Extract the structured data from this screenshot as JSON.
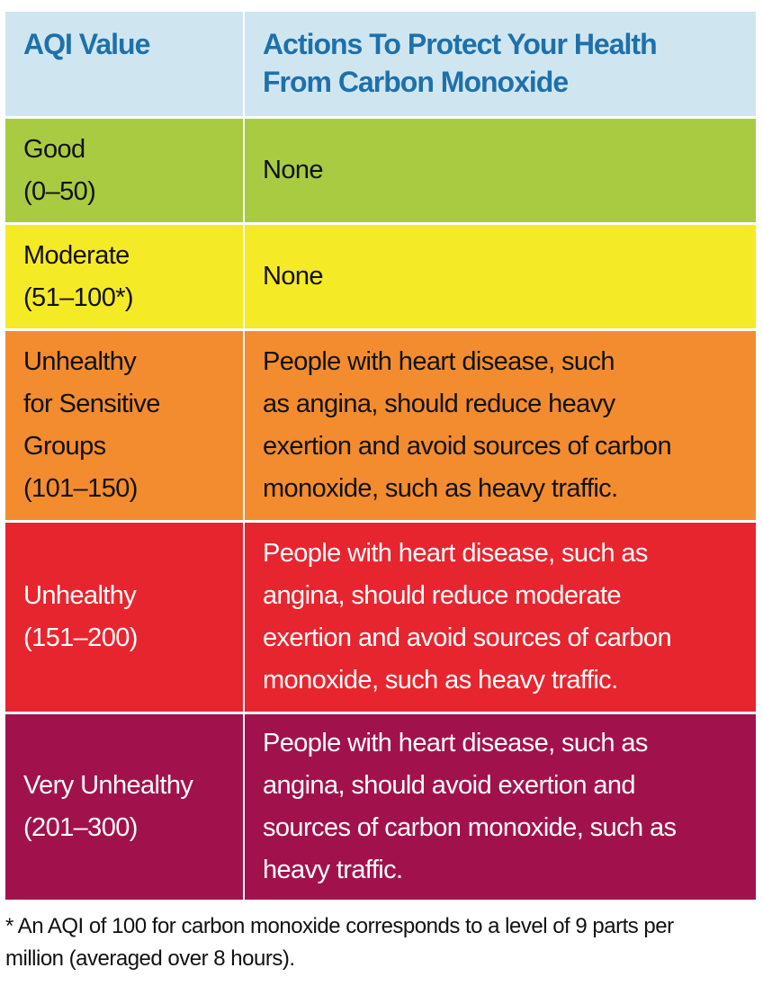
{
  "header": {
    "col1": "AQI Value",
    "col2_lines": [
      "Actions To Protect Your Health",
      "From Carbon Monoxide"
    ],
    "bg": "#cfe6f1",
    "text_color": "#1f70aa"
  },
  "rows": [
    {
      "level_lines": [
        "Good",
        "(0–50)"
      ],
      "action_lines": [
        "None"
      ],
      "bg": "#a8cb42",
      "text_color": "#111111"
    },
    {
      "level_lines": [
        "Moderate",
        "(51–100*)"
      ],
      "action_lines": [
        "None"
      ],
      "bg": "#f5ea26",
      "text_color": "#111111"
    },
    {
      "level_lines": [
        "Unhealthy",
        "for Sensitive",
        "Groups",
        "(101–150)"
      ],
      "action_lines": [
        "People with heart disease, such",
        "as angina, should reduce heavy",
        "exertion and avoid sources of carbon",
        "monoxide, such as heavy traffic."
      ],
      "bg": "#f28c2e",
      "text_color": "#111111"
    },
    {
      "level_lines": [
        "Unhealthy",
        "(151–200)"
      ],
      "action_lines": [
        "People with heart disease, such as",
        "angina, should reduce moderate",
        "exertion and avoid sources of carbon",
        "monoxide, such as heavy traffic."
      ],
      "bg": "#e7252f",
      "text_color": "#ffffff"
    },
    {
      "level_lines": [
        "Very Unhealthy",
        "(201–300)"
      ],
      "action_lines": [
        "People with heart disease, such as",
        "angina, should avoid exertion and",
        "sources of carbon monoxide, such as",
        "heavy traffic."
      ],
      "bg": "#a1124d",
      "text_color": "#ffffff"
    }
  ],
  "footnote_lines": [
    "* An AQI of 100 for carbon monoxide corresponds to a level of 9 parts per",
    "million (averaged over 8 hours)."
  ]
}
